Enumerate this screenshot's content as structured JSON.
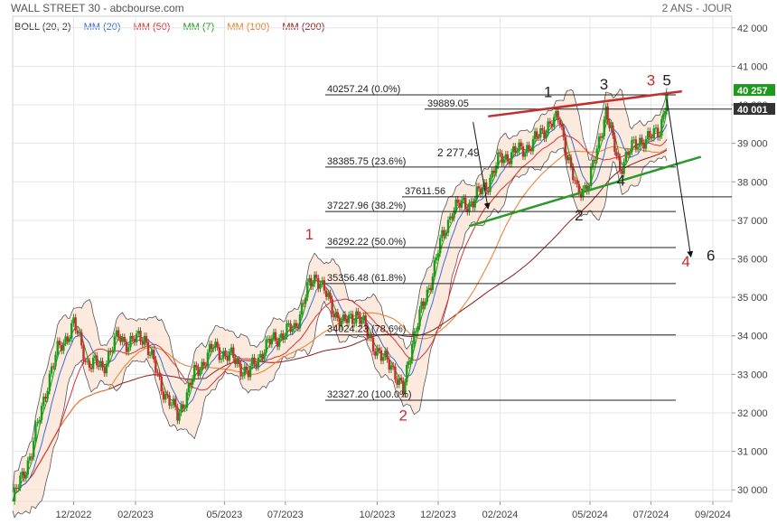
{
  "header": {
    "title": "WALL STREET 30 - abcbourse.com",
    "period": "2 ANS - JOUR"
  },
  "legend": [
    {
      "label": "BOLL (20, 2)",
      "color": "#333333"
    },
    {
      "label": "MM (20)",
      "color": "#3a6fd8"
    },
    {
      "label": "MM (50)",
      "color": "#e03030"
    },
    {
      "label": "MM (7)",
      "color": "#1e9a1e"
    },
    {
      "label": "MM (100)",
      "color": "#f07a20"
    },
    {
      "label": "MM (200)",
      "color": "#8b2020"
    }
  ],
  "chart_data": {
    "type": "line",
    "title": "WALL STREET 30 - abcbourse.com",
    "series_name": "WALL STREET 30",
    "ylim": [
      29700,
      42300
    ],
    "y_ticks": [
      30000,
      31000,
      32000,
      33000,
      34000,
      35000,
      36000,
      37000,
      38000,
      39000,
      40000,
      41000,
      42000
    ],
    "y_tick_labels": [
      "30 000",
      "31 000",
      "32 000",
      "33 000",
      "34 000",
      "35 000",
      "36 000",
      "37 000",
      "38 000",
      "39 000",
      "40 000",
      "41 000",
      "42 000"
    ],
    "x_range": [
      "2022-10-01",
      "2024-09-20"
    ],
    "x_ticks": [
      "2022-12-01",
      "2023-02-01",
      "2023-05-01",
      "2023-07-01",
      "2023-10-01",
      "2023-12-01",
      "2024-02-01",
      "2024-05-01",
      "2024-07-01",
      "2024-09-01"
    ],
    "x_tick_labels": [
      "12/2022",
      "02/2023",
      "05/2023",
      "07/2023",
      "10/2023",
      "12/2023",
      "02/2024",
      "05/2024",
      "07/2024",
      "09/2024"
    ],
    "price": [
      {
        "x": "2022-10-01",
        "y": 29700
      },
      {
        "x": "2022-10-20",
        "y": 31000
      },
      {
        "x": "2022-11-05",
        "y": 32800
      },
      {
        "x": "2022-11-15",
        "y": 33600
      },
      {
        "x": "2022-12-01",
        "y": 34300
      },
      {
        "x": "2022-12-15",
        "y": 33300
      },
      {
        "x": "2022-12-30",
        "y": 33200
      },
      {
        "x": "2023-01-15",
        "y": 34000
      },
      {
        "x": "2023-01-25",
        "y": 33800
      },
      {
        "x": "2023-02-10",
        "y": 34000
      },
      {
        "x": "2023-02-25",
        "y": 32800
      },
      {
        "x": "2023-03-15",
        "y": 31900
      },
      {
        "x": "2023-04-01",
        "y": 33000
      },
      {
        "x": "2023-04-20",
        "y": 33700
      },
      {
        "x": "2023-05-10",
        "y": 33400
      },
      {
        "x": "2023-05-25",
        "y": 33000
      },
      {
        "x": "2023-06-10",
        "y": 33700
      },
      {
        "x": "2023-06-25",
        "y": 34000
      },
      {
        "x": "2023-07-10",
        "y": 34200
      },
      {
        "x": "2023-07-25",
        "y": 35300
      },
      {
        "x": "2023-08-01",
        "y": 35600
      },
      {
        "x": "2023-08-15",
        "y": 34800
      },
      {
        "x": "2023-08-28",
        "y": 34300
      },
      {
        "x": "2023-09-10",
        "y": 34600
      },
      {
        "x": "2023-09-25",
        "y": 33900
      },
      {
        "x": "2023-10-05",
        "y": 33400
      },
      {
        "x": "2023-10-15",
        "y": 33300
      },
      {
        "x": "2023-10-27",
        "y": 32500
      },
      {
        "x": "2023-11-05",
        "y": 33900
      },
      {
        "x": "2023-11-20",
        "y": 35100
      },
      {
        "x": "2023-12-01",
        "y": 36200
      },
      {
        "x": "2023-12-15",
        "y": 37300
      },
      {
        "x": "2024-01-05",
        "y": 37500
      },
      {
        "x": "2024-01-20",
        "y": 38000
      },
      {
        "x": "2024-02-01",
        "y": 38600
      },
      {
        "x": "2024-02-20",
        "y": 38800
      },
      {
        "x": "2024-03-05",
        "y": 39000
      },
      {
        "x": "2024-03-20",
        "y": 39500
      },
      {
        "x": "2024-04-01",
        "y": 39600
      },
      {
        "x": "2024-04-10",
        "y": 38500
      },
      {
        "x": "2024-04-18",
        "y": 37700
      },
      {
        "x": "2024-04-30",
        "y": 38000
      },
      {
        "x": "2024-05-10",
        "y": 39000
      },
      {
        "x": "2024-05-17",
        "y": 39900
      },
      {
        "x": "2024-05-24",
        "y": 39000
      },
      {
        "x": "2024-05-31",
        "y": 38400
      },
      {
        "x": "2024-06-10",
        "y": 38800
      },
      {
        "x": "2024-06-20",
        "y": 39100
      },
      {
        "x": "2024-06-30",
        "y": 39100
      },
      {
        "x": "2024-07-10",
        "y": 39400
      },
      {
        "x": "2024-07-17",
        "y": 40200
      }
    ],
    "fibonacci_levels": [
      {
        "label": "40257.24  (0.0%)",
        "value": 40257.24
      },
      {
        "label": "38385.75  (23.6%)",
        "value": 38385.75
      },
      {
        "label": "37227.96  (38.2%)",
        "value": 37227.96
      },
      {
        "label": "36292.22  (50.0%)",
        "value": 36292.22
      },
      {
        "label": "35356.48  (61.8%)",
        "value": 35356.48
      },
      {
        "label": "34024.23  (78.6%)",
        "value": 34024.23
      },
      {
        "label": "32327.20  (100.0%)",
        "value": 32327.2
      }
    ],
    "extra_levels": [
      {
        "label": "39889.05",
        "value": 39889.05
      },
      {
        "label": "37611.56",
        "value": 37611.56
      }
    ],
    "price_tags": [
      {
        "label": "40 257",
        "value": 40257,
        "color": "#1e9a1e"
      },
      {
        "label": "40 001",
        "value": 40001,
        "color": "#333333"
      }
    ],
    "annotations": {
      "move_label": "2 277,49",
      "resistance_line": {
        "from": {
          "x": "2024-01-20",
          "y": 39700
        },
        "to": {
          "x": "2024-08-01",
          "y": 40350
        },
        "color": "#c03030"
      },
      "support_line": {
        "from": {
          "x": "2024-01-01",
          "y": 36850
        },
        "to": {
          "x": "2024-08-20",
          "y": 38650
        },
        "color": "#2a9a2a"
      },
      "arrow_move": {
        "from": {
          "x": "2024-01-05",
          "y": 39550
        },
        "to": {
          "x": "2024-01-20",
          "y": 37300
        }
      },
      "arrow_target": {
        "from": {
          "x": "2024-07-17",
          "y": 40150
        },
        "to": {
          "x": "2024-08-10",
          "y": 36050
        }
      },
      "wave_labels": [
        {
          "text": "1",
          "x": "2023-07-25",
          "y": 36500,
          "color": "#c03030"
        },
        {
          "text": "2",
          "x": "2023-10-27",
          "y": 31800,
          "color": "#c03030"
        },
        {
          "text": "3",
          "x": "2024-07-01",
          "y": 40500,
          "color": "#c03030"
        },
        {
          "text": "4",
          "x": "2024-08-05",
          "y": 35800,
          "color": "#c03030"
        },
        {
          "text": "1",
          "x": "2024-03-20",
          "y": 40200,
          "color": "#222222"
        },
        {
          "text": "2",
          "x": "2024-04-20",
          "y": 37000,
          "color": "#222222"
        },
        {
          "text": "3",
          "x": "2024-05-15",
          "y": 40400,
          "color": "#222222"
        },
        {
          "text": "4",
          "x": "2024-06-01",
          "y": 37900,
          "color": "#222222"
        },
        {
          "text": "5",
          "x": "2024-07-17",
          "y": 40500,
          "color": "#222222"
        },
        {
          "text": "6",
          "x": "2024-08-30",
          "y": 35950,
          "color": "#222222"
        }
      ]
    }
  }
}
